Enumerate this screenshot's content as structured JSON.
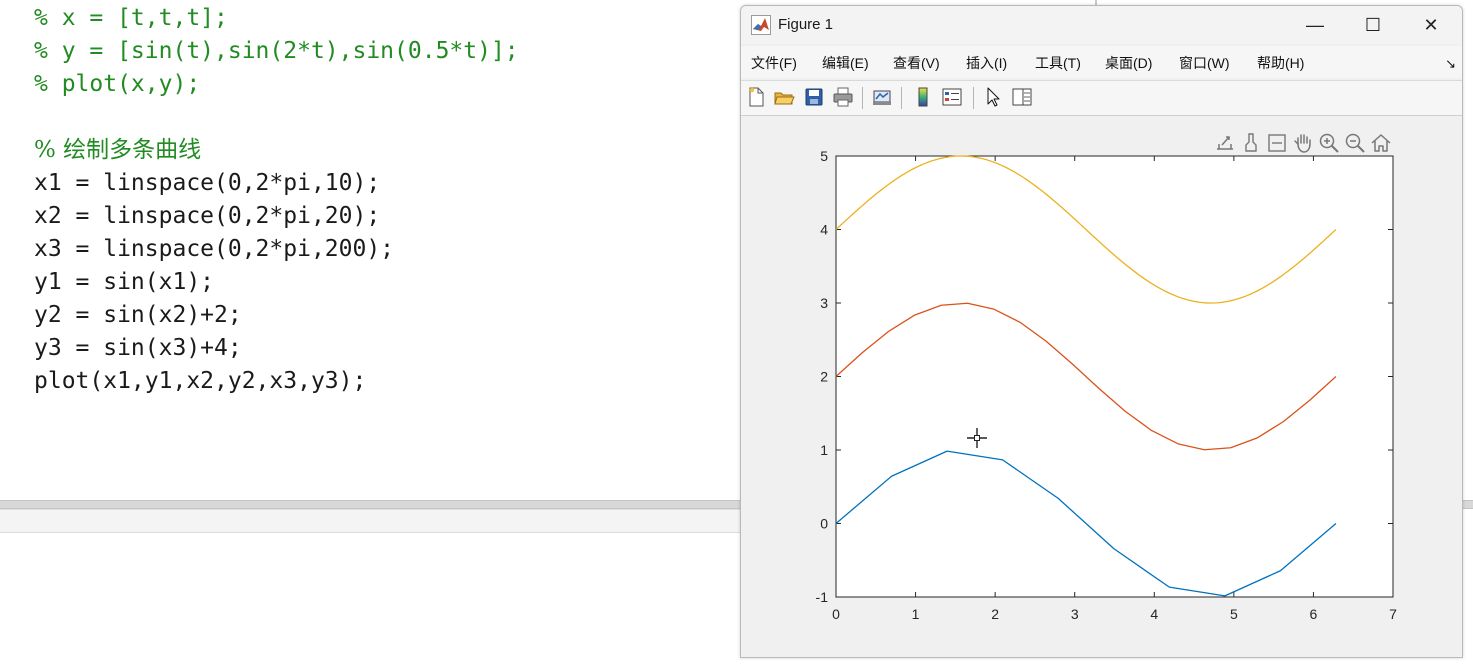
{
  "editor": {
    "lines": [
      {
        "text": "% x = [t,t,t];",
        "kind": "comment"
      },
      {
        "text": "% y = [sin(t),sin(2*t),sin(0.5*t)];",
        "kind": "comment"
      },
      {
        "text": "% plot(x,y);",
        "kind": "comment"
      },
      {
        "text": "",
        "kind": "blank"
      },
      {
        "text": "% 绘制多条曲线",
        "kind": "comment-cjk"
      },
      {
        "text": "x1 = linspace(0,2*pi,10);",
        "kind": "code"
      },
      {
        "text": "x2 = linspace(0,2*pi,20);",
        "kind": "code"
      },
      {
        "text": "x3 = linspace(0,2*pi,200);",
        "kind": "code"
      },
      {
        "text": "y1 = sin(x1);",
        "kind": "code"
      },
      {
        "text": "y2 = sin(x2)+2;",
        "kind": "code"
      },
      {
        "text": "y3 = sin(x3)+4;",
        "kind": "code"
      },
      {
        "text": "plot(x1,y1,x2,y2,x3,y3);",
        "kind": "code"
      }
    ]
  },
  "figure_window": {
    "title": "Figure 1",
    "app_icon": "matlab-logo-icon",
    "controls": {
      "minimize": "—",
      "maximize": "☐",
      "close": "✕"
    },
    "menu": [
      "文件(F)",
      "编辑(E)",
      "查看(V)",
      "插入(I)",
      "工具(T)",
      "桌面(D)",
      "窗口(W)",
      "帮助(H)"
    ],
    "menu_overflow": "↘",
    "toolbar_icons": [
      "new-figure-icon",
      "open-file-icon",
      "save-icon",
      "print-icon",
      "link-plot-icon",
      "insert-colorbar-icon",
      "insert-legend-icon",
      "edit-plot-arrow-icon",
      "property-inspector-icon"
    ],
    "axes_toolbar_icons": [
      "export-icon",
      "brush-icon",
      "data-tips-icon",
      "pan-hand-icon",
      "zoom-in-icon",
      "zoom-out-icon",
      "home-restore-icon"
    ]
  },
  "chart_data": {
    "type": "line",
    "title": "",
    "xlabel": "",
    "ylabel": "",
    "xlim": [
      0,
      7
    ],
    "ylim": [
      -1,
      5
    ],
    "xticks": [
      0,
      1,
      2,
      3,
      4,
      5,
      6,
      7
    ],
    "yticks": [
      -1,
      0,
      1,
      2,
      3,
      4,
      5
    ],
    "grid": false,
    "series": [
      {
        "color": "#0072BD",
        "points": 10,
        "x": [
          0,
          0.698,
          1.396,
          2.094,
          2.793,
          3.491,
          4.189,
          4.887,
          5.585,
          6.283
        ],
        "y": [
          0,
          0.643,
          0.985,
          0.866,
          0.342,
          -0.342,
          -0.866,
          -0.985,
          -0.643,
          0
        ]
      },
      {
        "color": "#D95319",
        "points": 20,
        "x": [
          0,
          0.331,
          0.661,
          0.992,
          1.323,
          1.653,
          1.984,
          2.315,
          2.645,
          2.976,
          3.307,
          3.638,
          3.968,
          4.299,
          4.63,
          4.96,
          5.291,
          5.622,
          5.952,
          6.283
        ],
        "y": [
          2,
          2.325,
          2.614,
          2.837,
          2.969,
          2.997,
          2.916,
          2.736,
          2.476,
          2.165,
          1.835,
          1.524,
          1.264,
          1.084,
          1.003,
          1.031,
          1.163,
          1.386,
          1.675,
          2
        ]
      },
      {
        "color": "#EDB120",
        "points": 200,
        "x_range": [
          0,
          6.283
        ],
        "y_formula": "sin(x)+4"
      }
    ]
  }
}
